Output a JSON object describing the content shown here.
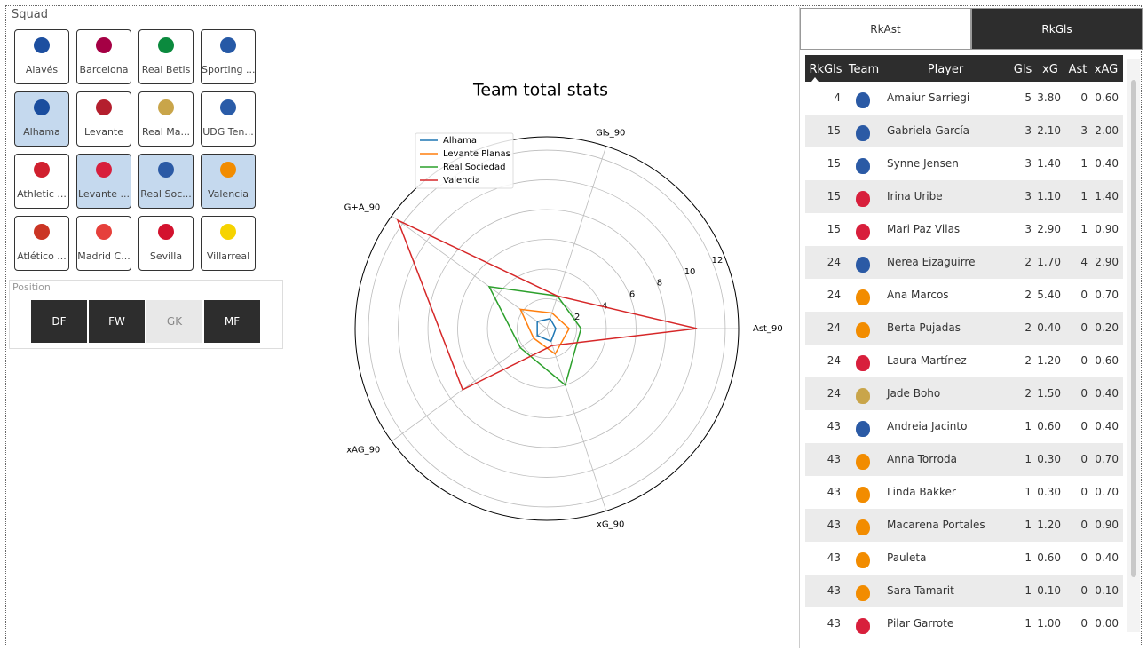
{
  "squad": {
    "title": "Squad",
    "teams": [
      "Alavés",
      "Barcelona",
      "Real Betis",
      "Sporting ...",
      "Alhama",
      "Levante",
      "Real Ma...",
      "UDG Ten...",
      "Athletic ...",
      "Levante ...",
      "Real Soc...",
      "Valencia",
      "Atlético ...",
      "Madrid C...",
      "Sevilla",
      "Villarreal"
    ],
    "selected": [
      false,
      false,
      false,
      false,
      true,
      false,
      false,
      false,
      false,
      true,
      true,
      true,
      false,
      false,
      false,
      false
    ],
    "logo_colors": [
      "#1d4fa0",
      "#a50044",
      "#0b8a3e",
      "#2659a6",
      "#1a4d9e",
      "#b41f2e",
      "#c9a54a",
      "#2a5ca8",
      "#d0202f",
      "#d81f3c",
      "#2b5aa5",
      "#f28c00",
      "#cb3524",
      "#e6403b",
      "#d3122e",
      "#f6d300"
    ]
  },
  "position": {
    "title": "Position",
    "options": [
      "DF",
      "FW",
      "GK",
      "MF"
    ],
    "selected": [
      true,
      true,
      false,
      true
    ]
  },
  "tabs": {
    "options": [
      "RkAst",
      "RkGls"
    ],
    "active": 1
  },
  "table": {
    "columns": [
      "RkGls",
      "Team",
      "Player",
      "Gls",
      "xG",
      "Ast",
      "xAG"
    ],
    "rows": [
      [
        "4",
        "Amaiur Sarriegi",
        "5",
        "3.80",
        "0",
        "0.60"
      ],
      [
        "15",
        "Gabriela García",
        "3",
        "2.10",
        "3",
        "2.00"
      ],
      [
        "15",
        "Synne Jensen",
        "3",
        "1.40",
        "1",
        "0.40"
      ],
      [
        "15",
        "Irina Uribe",
        "3",
        "1.10",
        "1",
        "1.40"
      ],
      [
        "15",
        "Mari Paz Vilas",
        "3",
        "2.90",
        "1",
        "0.90"
      ],
      [
        "24",
        "Nerea Eizaguirre",
        "2",
        "1.70",
        "4",
        "2.90"
      ],
      [
        "24",
        "Ana Marcos",
        "2",
        "5.40",
        "0",
        "0.70"
      ],
      [
        "24",
        "Berta Pujadas",
        "2",
        "0.40",
        "0",
        "0.20"
      ],
      [
        "24",
        "Laura Martínez",
        "2",
        "1.20",
        "0",
        "0.60"
      ],
      [
        "24",
        "Jade Boho",
        "2",
        "1.50",
        "0",
        "0.40"
      ],
      [
        "43",
        "Andreia Jacinto",
        "1",
        "0.60",
        "0",
        "0.40"
      ],
      [
        "43",
        "Anna Torroda",
        "1",
        "0.30",
        "0",
        "0.70"
      ],
      [
        "43",
        "Linda Bakker",
        "1",
        "0.30",
        "0",
        "0.70"
      ],
      [
        "43",
        "Macarena Portales",
        "1",
        "1.20",
        "0",
        "0.90"
      ],
      [
        "43",
        "Pauleta",
        "1",
        "0.60",
        "0",
        "0.40"
      ],
      [
        "43",
        "Sara Tamarit",
        "1",
        "0.10",
        "0",
        "0.10"
      ],
      [
        "43",
        "Pilar Garrote",
        "1",
        "1.00",
        "0",
        "0.00"
      ]
    ],
    "logo_colors": [
      "#2b5aa5",
      "#2b5aa5",
      "#2b5aa5",
      "#d81f3c",
      "#d81f3c",
      "#2b5aa5",
      "#f28c00",
      "#f28c00",
      "#d81f3c",
      "#c9a54a",
      "#2b5aa5",
      "#f28c00",
      "#f28c00",
      "#f28c00",
      "#f28c00",
      "#f28c00",
      "#d81f3c"
    ]
  },
  "chart_data": {
    "type": "radar",
    "title": "Team total stats",
    "categories": [
      "Ast_90",
      "Gls_90",
      "G+A_90",
      "xAG_90",
      "xG_90"
    ],
    "series": [
      {
        "name": "Alhama",
        "color": "#1f77b4",
        "values": [
          0.6,
          0.7,
          0.8,
          0.8,
          0.9
        ]
      },
      {
        "name": "Levante Planas",
        "color": "#ff7f0e",
        "values": [
          1.5,
          1.1,
          2.2,
          1.1,
          1.8
        ]
      },
      {
        "name": "Real Sociedad",
        "color": "#2ca02c",
        "values": [
          2.3,
          2.3,
          4.8,
          2.2,
          4.0
        ]
      },
      {
        "name": "Valencia",
        "color": "#d62728",
        "values": [
          10.1,
          2.3,
          12.4,
          7.0,
          1.2
        ]
      }
    ],
    "ylim": [
      0,
      12.9
    ],
    "yticks": [
      2,
      4,
      6,
      8,
      10,
      12
    ],
    "grid": true,
    "legend": "upper left"
  }
}
